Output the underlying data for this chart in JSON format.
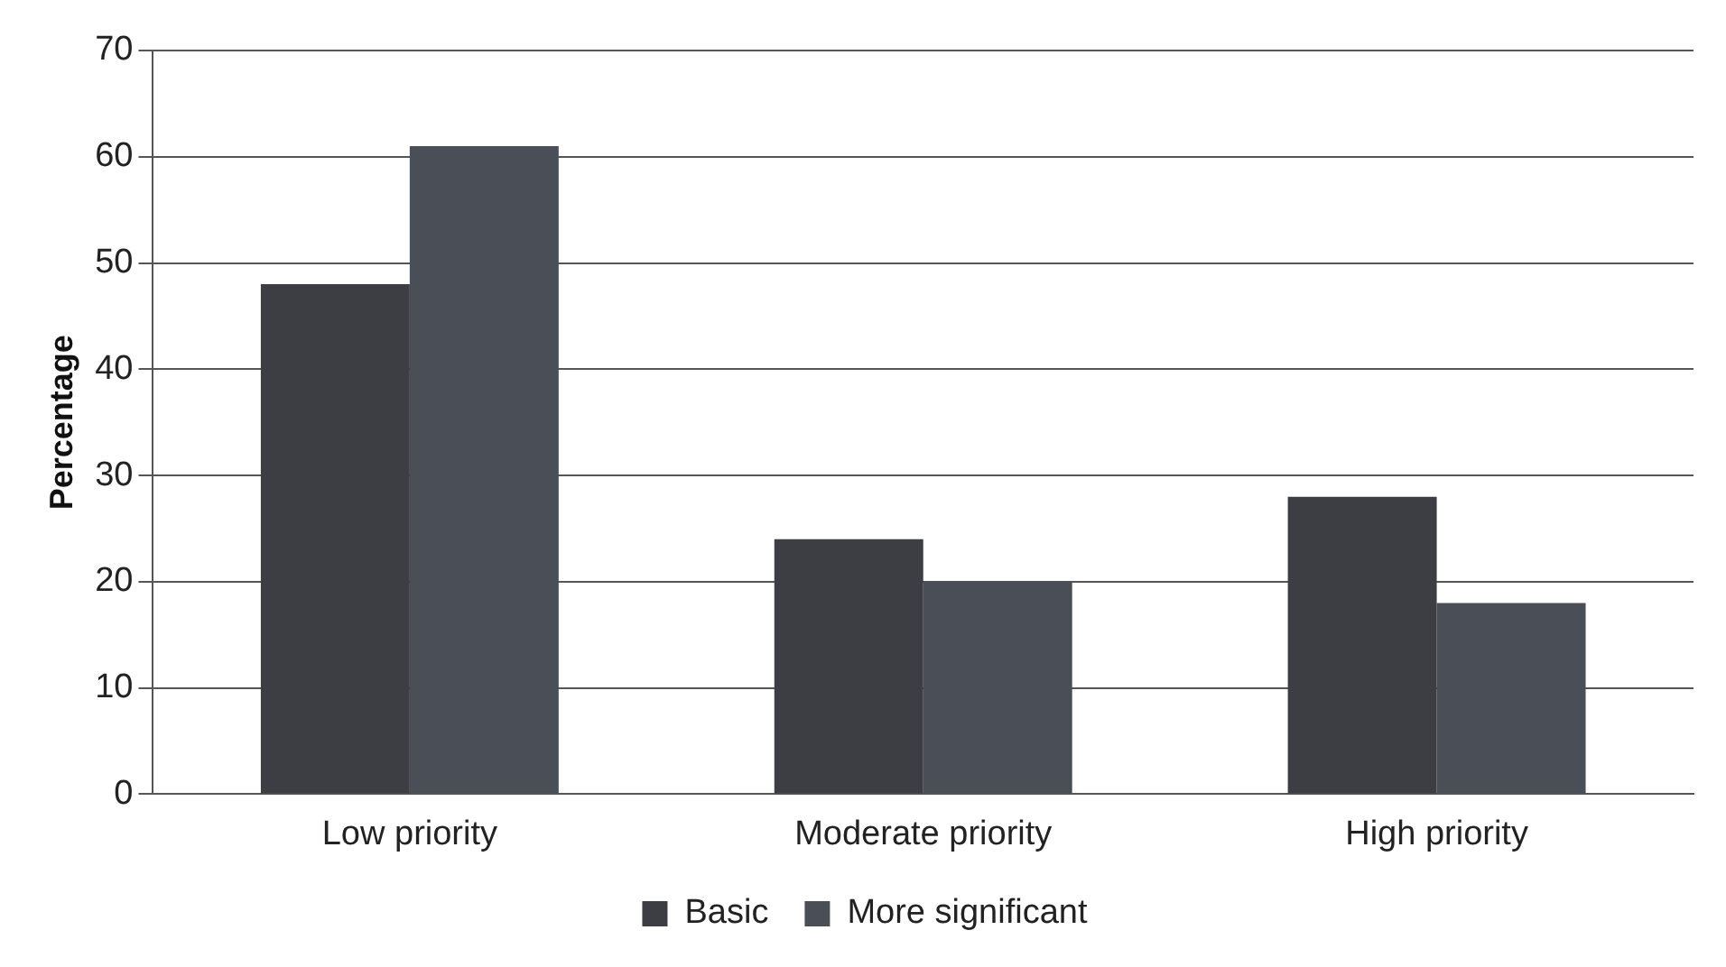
{
  "chart_data": {
    "type": "bar",
    "ylabel": "Percentage",
    "categories": [
      "Low priority",
      "Moderate priority",
      "High priority"
    ],
    "series": [
      {
        "name": "Basic",
        "color": "#3c3e43",
        "values": [
          48,
          24,
          28
        ]
      },
      {
        "name": "More significant",
        "color": "#4a4f57",
        "values": [
          61,
          20,
          18
        ]
      }
    ],
    "ylim": [
      0,
      70
    ],
    "yticks": [
      0,
      10,
      20,
      30,
      40,
      50,
      60,
      70
    ],
    "grid": "y",
    "legend": "bottom"
  }
}
